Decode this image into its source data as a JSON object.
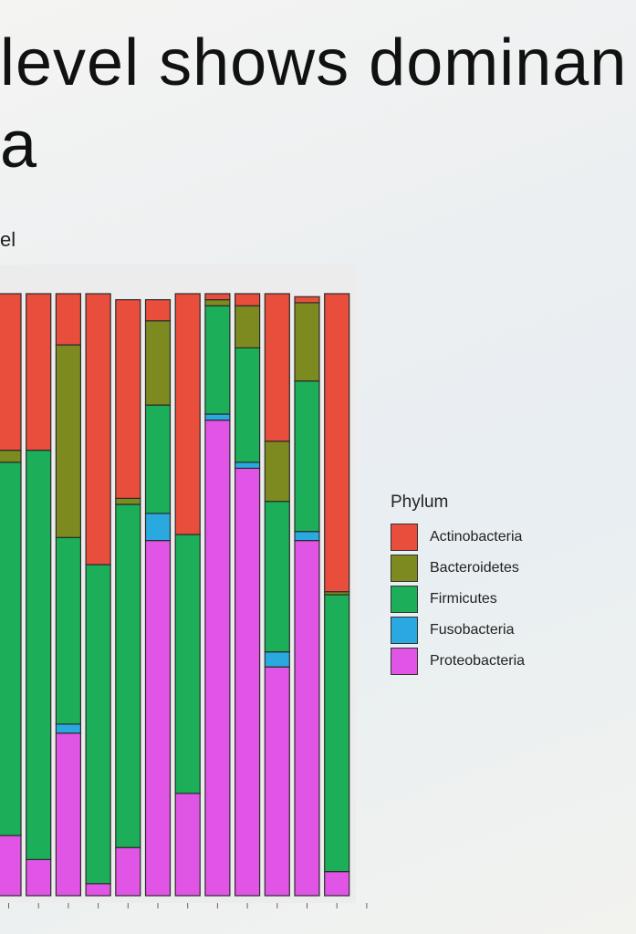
{
  "slide": {
    "title_line1": "level shows dominan",
    "title_line2": "a",
    "subtitle": "el"
  },
  "chart_data": {
    "type": "bar",
    "stacked": true,
    "normalized": true,
    "ylim": [
      0,
      1
    ],
    "legend": {
      "title": "Phylum",
      "position": "right"
    },
    "categories": [
      "",
      "",
      "",
      "",
      "",
      "",
      "",
      "",
      "",
      "",
      "",
      "",
      ""
    ],
    "series": [
      {
        "name": "Proteobacteria",
        "color": "#e055e6",
        "values": [
          0.1,
          0.06,
          0.27,
          0.02,
          0.08,
          0.59,
          0.17,
          0.79,
          0.71,
          0.38,
          0.59,
          0.04,
          0.0
        ]
      },
      {
        "name": "Fusobacteria",
        "color": "#2aa8e0",
        "values": [
          0.0,
          0.0,
          0.015,
          0.0,
          0.0,
          0.045,
          0.0,
          0.01,
          0.01,
          0.025,
          0.015,
          0.0,
          0.0
        ]
      },
      {
        "name": "Firmicutes",
        "color": "#1cae58",
        "values": [
          0.62,
          0.68,
          0.31,
          0.53,
          0.57,
          0.18,
          0.43,
          0.18,
          0.19,
          0.25,
          0.25,
          0.46,
          0.0
        ]
      },
      {
        "name": "Bacteroidetes",
        "color": "#7c8a20",
        "values": [
          0.02,
          0.0,
          0.32,
          0.0,
          0.01,
          0.14,
          0.0,
          0.01,
          0.07,
          0.1,
          0.13,
          0.005,
          0.0
        ]
      },
      {
        "name": "Actinobacteria",
        "color": "#e94d3c",
        "values": [
          0.26,
          0.26,
          0.085,
          0.45,
          0.33,
          0.035,
          0.4,
          0.01,
          0.02,
          0.245,
          0.01,
          0.495,
          0.0
        ]
      }
    ]
  },
  "colors": {
    "bar_outline": "#2b2b2b",
    "panel": "#ececec"
  }
}
